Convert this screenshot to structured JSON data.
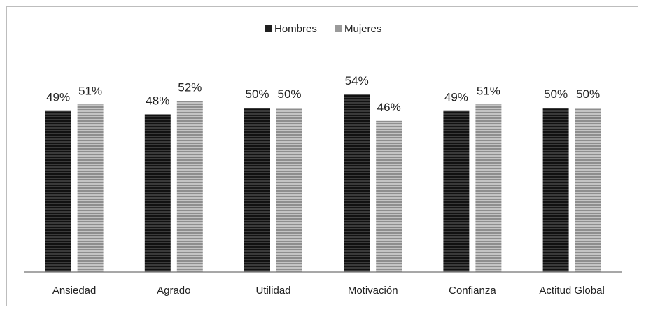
{
  "chart_data": {
    "type": "bar",
    "title": "",
    "xlabel": "",
    "ylabel": "",
    "ylim": [
      0,
      60
    ],
    "grid": false,
    "legend_position": "top-center",
    "categories": [
      "Ansiedad",
      "Agrado",
      "Utilidad",
      "Motivación",
      "Confianza",
      "Actitud Global"
    ],
    "series": [
      {
        "name": "Hombres",
        "color": "#1f1f1f",
        "values": [
          49,
          48,
          50,
          54,
          49,
          50
        ],
        "labels": [
          "49%",
          "48%",
          "50%",
          "54%",
          "49%",
          "50%"
        ]
      },
      {
        "name": "Mujeres",
        "color": "#9a9a9a",
        "values": [
          51,
          52,
          50,
          46,
          51,
          50
        ],
        "labels": [
          "51%",
          "52%",
          "50%",
          "46%",
          "51%",
          "50%"
        ]
      }
    ]
  }
}
